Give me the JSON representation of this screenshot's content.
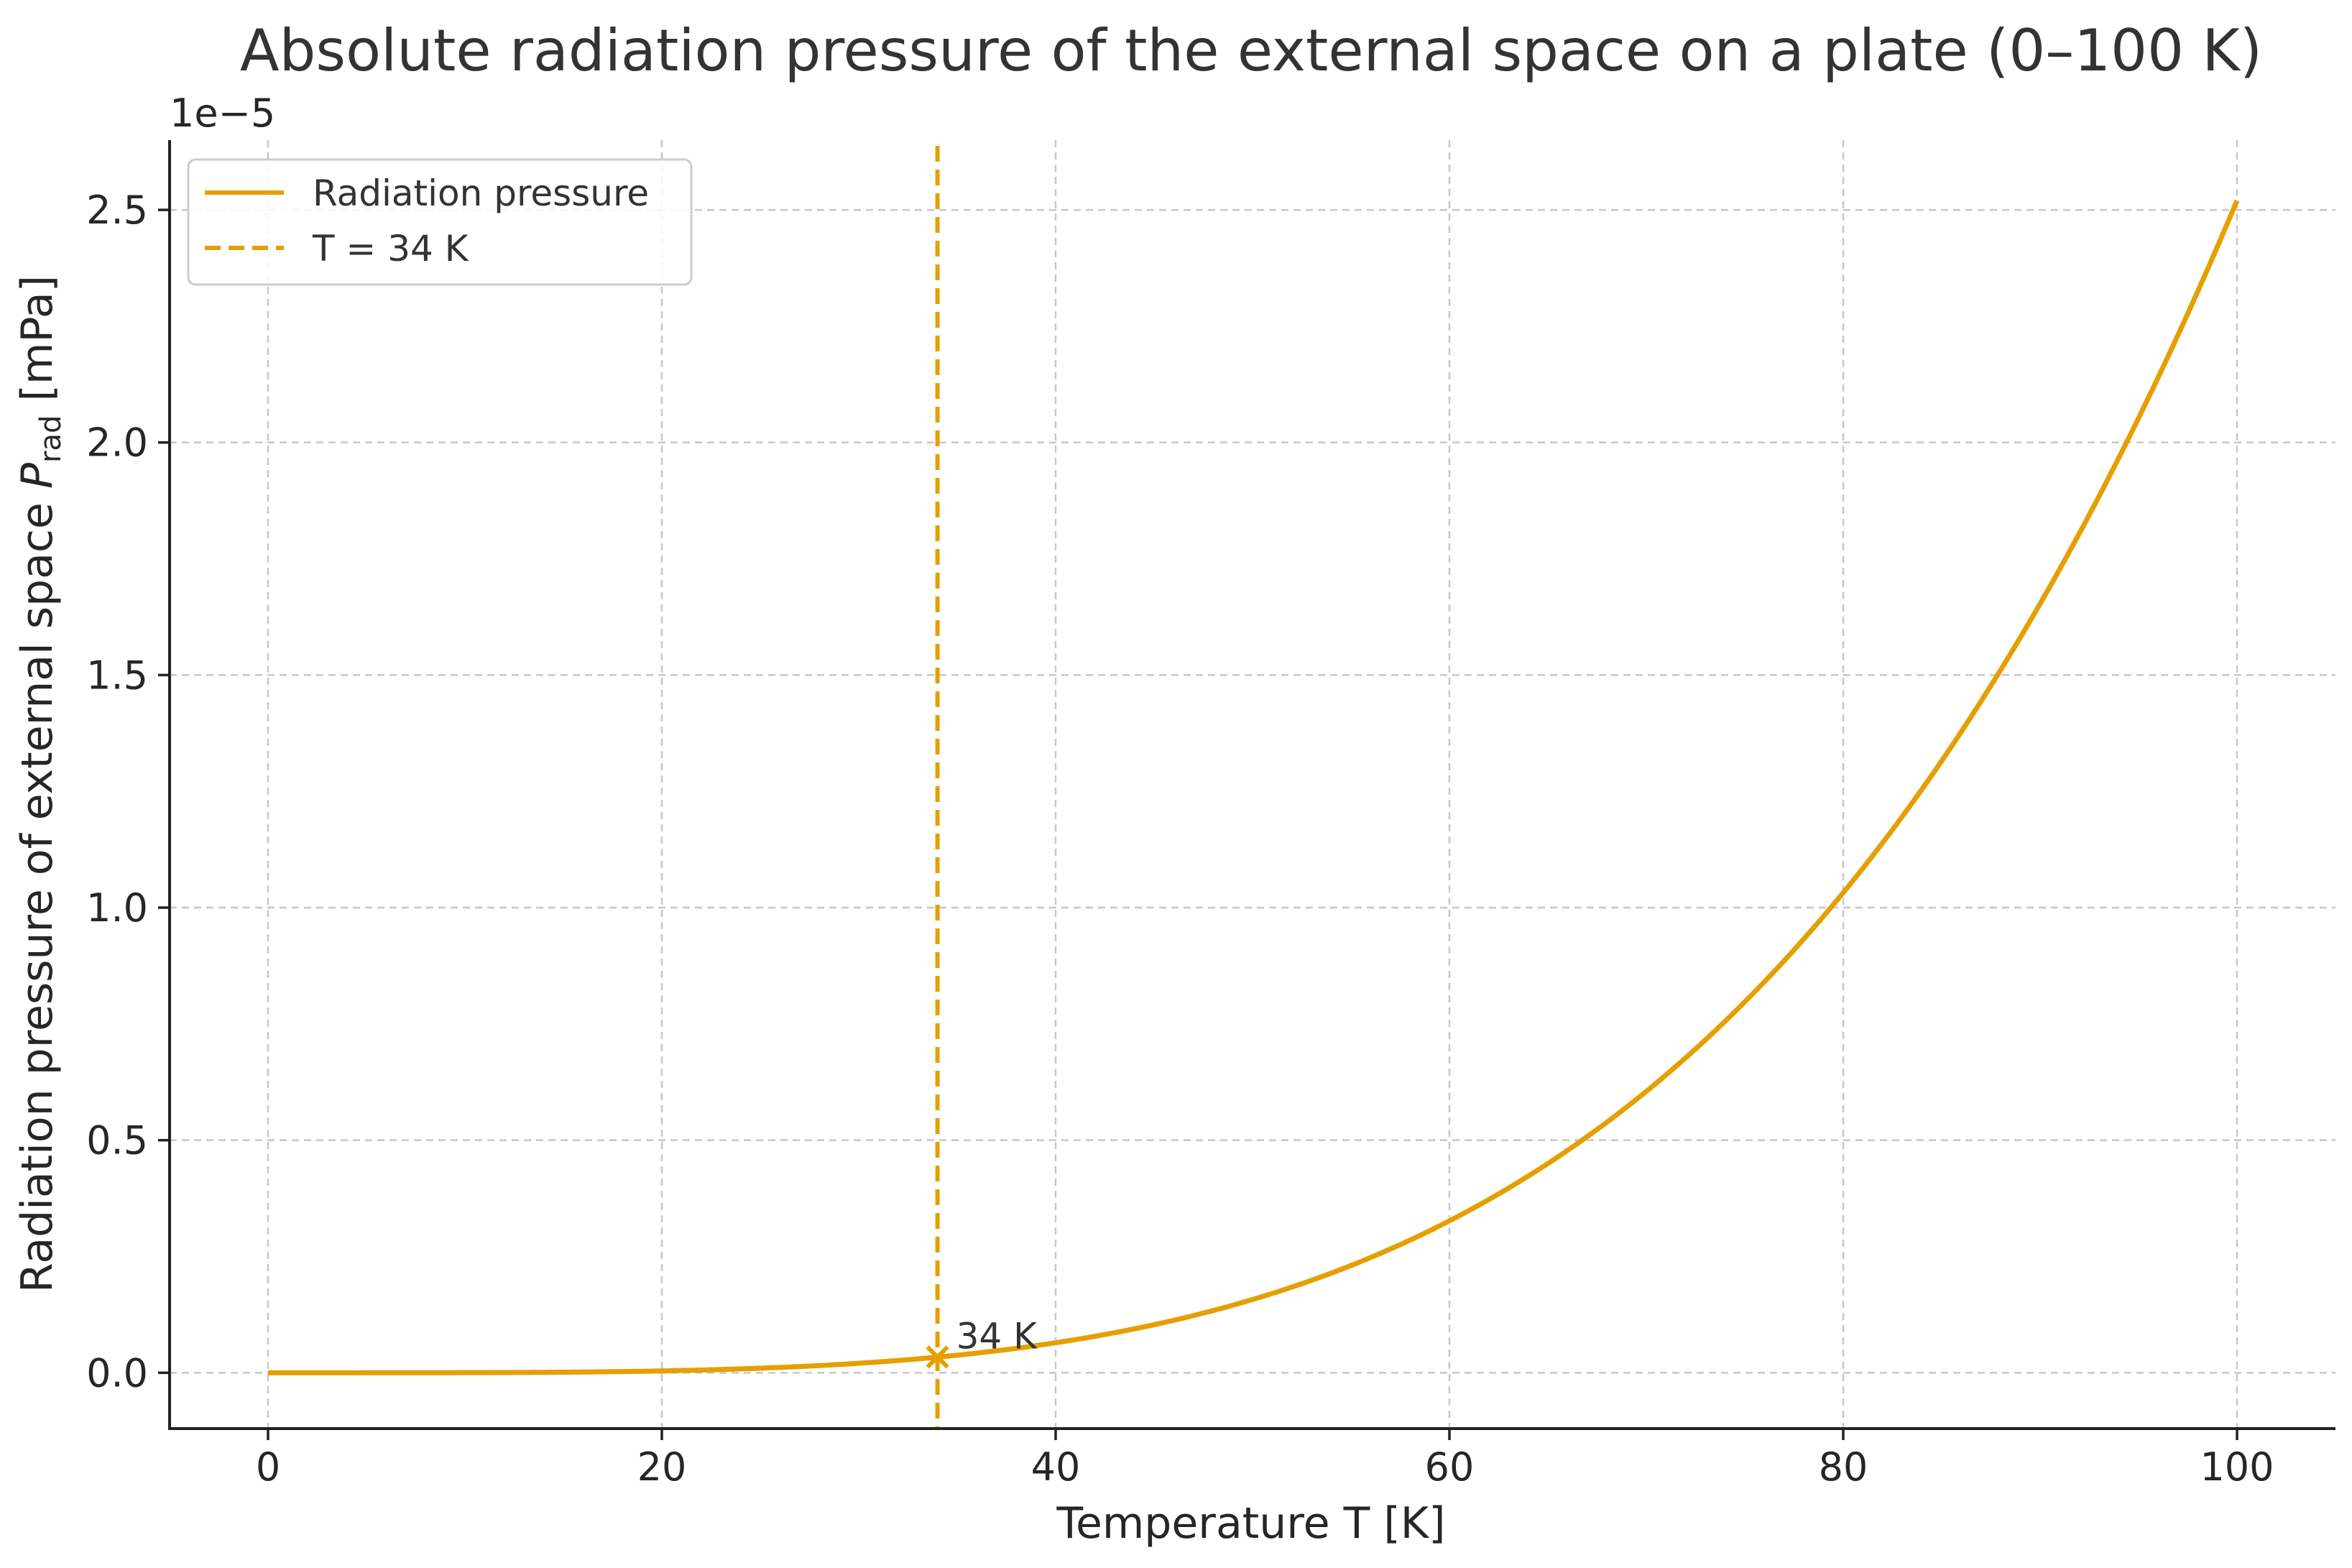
{
  "chart_data": {
    "type": "line",
    "title": "Absolute radiation pressure of the external space on a plate (0–100 K)",
    "xlabel": "Temperature T [K]",
    "ylabel_prefix": "Radiation pressure of external space ",
    "ylabel_symbol": "P",
    "ylabel_subscript": "rad",
    "ylabel_suffix": " [mPa]",
    "y_offset_label": "1e−5",
    "xlim": [
      -5,
      105
    ],
    "ylim": [
      -0.12,
      2.65
    ],
    "x_ticks": [
      0,
      20,
      40,
      60,
      80,
      100
    ],
    "x_tick_labels": [
      "0",
      "20",
      "40",
      "60",
      "80",
      "100"
    ],
    "y_ticks": [
      0.0,
      0.5,
      1.0,
      1.5,
      2.0,
      2.5
    ],
    "y_tick_labels": [
      "0.0",
      "0.5",
      "1.0",
      "1.5",
      "2.0",
      "2.5"
    ],
    "y_scale_note": "values in units of 1e-5 mPa",
    "grid": true,
    "legend_position": "top-left",
    "series": [
      {
        "name": "Radiation pressure",
        "style": "solid",
        "color": "#E69F00",
        "formula": "2.52 * (T/100)^4",
        "x": [
          0,
          10,
          20,
          30,
          34,
          40,
          50,
          60,
          70,
          80,
          90,
          100
        ],
        "y": [
          0.0,
          0.0003,
          0.004,
          0.02,
          0.034,
          0.065,
          0.158,
          0.327,
          0.605,
          1.032,
          1.653,
          2.52
        ]
      }
    ],
    "vline": {
      "name": "T = 34 K",
      "x": 34,
      "style": "dashed",
      "color": "#E69F00"
    },
    "marker": {
      "x": 34,
      "y": 0.034,
      "symbol": "x",
      "color": "#E69F00"
    },
    "annotation": {
      "text": "34 K",
      "x": 34,
      "y": 0.034
    }
  }
}
